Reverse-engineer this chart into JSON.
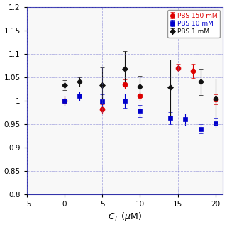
{
  "xlabel": "C$_T$ (μM)",
  "xlim": [
    -5,
    21
  ],
  "ylim": [
    0.8,
    1.2
  ],
  "yticks": [
    0.8,
    0.85,
    0.9,
    0.95,
    1.0,
    1.05,
    1.1,
    1.15,
    1.2
  ],
  "xticks": [
    -5,
    0,
    5,
    10,
    15,
    20
  ],
  "background_color": "#ffffff",
  "plot_bg_color": "#f8f8f8",
  "grid_color": "#6666cc",
  "spine_color": "#3333aa",
  "series": [
    {
      "label": "PBS 150 mM",
      "color": "#dd0000",
      "marker": "o",
      "markersize": 5,
      "x": [
        0,
        5,
        8,
        10,
        15,
        17,
        20
      ],
      "y": [
        1.0,
        0.982,
        1.035,
        1.01,
        1.07,
        1.063,
        1.003
      ],
      "yerr": [
        0.01,
        0.01,
        0.01,
        0.01,
        0.008,
        0.015,
        0.01
      ]
    },
    {
      "label": "PBS 10 mM",
      "color": "#0000cc",
      "marker": "s",
      "markersize": 5,
      "x": [
        0,
        2,
        5,
        8,
        10,
        14,
        16,
        18,
        20
      ],
      "y": [
        1.0,
        1.01,
        0.998,
        1.0,
        0.978,
        0.963,
        0.96,
        0.94,
        0.952
      ],
      "yerr": [
        0.01,
        0.01,
        0.015,
        0.015,
        0.013,
        0.013,
        0.013,
        0.01,
        0.01
      ]
    },
    {
      "label": "PBS 1 mM",
      "color": "#111111",
      "marker": "D",
      "markersize": 4,
      "x": [
        0,
        2,
        5,
        8,
        10,
        14,
        18,
        20
      ],
      "y": [
        1.033,
        1.04,
        1.033,
        1.068,
        1.03,
        1.028,
        1.04,
        1.005
      ],
      "yerr": [
        0.01,
        0.01,
        0.038,
        0.038,
        0.022,
        0.06,
        0.028,
        0.042
      ]
    }
  ]
}
